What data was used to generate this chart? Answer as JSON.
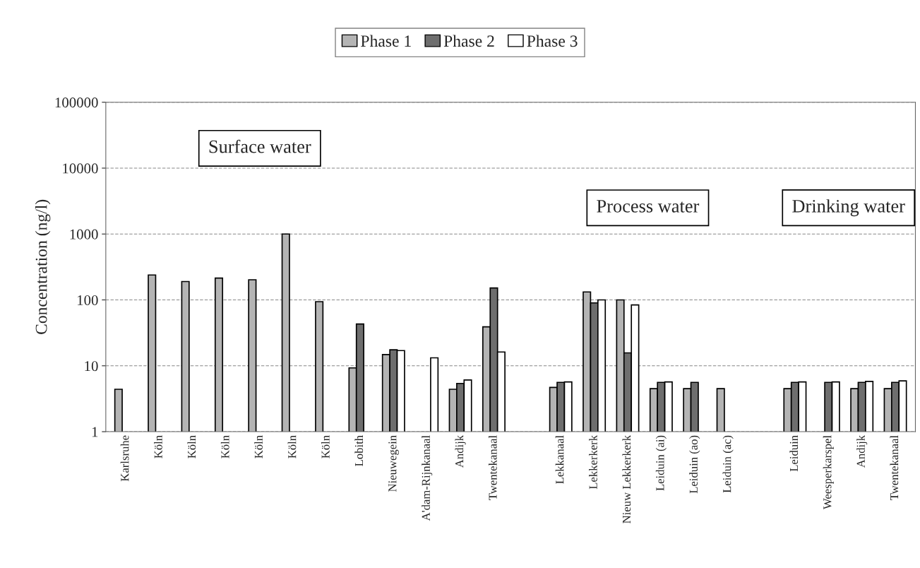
{
  "chart_data": {
    "type": "bar",
    "ylabel": "Concentration (ng/l)",
    "categories": [
      "Karlsruhe",
      "Köln",
      "Köln",
      "Köln",
      "Köln",
      "Köln",
      "Köln",
      "Lobith",
      "Nieuwegein",
      "A'dam-Rijnkanaal",
      "Andijk",
      "Twentekanaal",
      null,
      "Lekkanaal",
      "Lekkerkerk",
      "Nieuw Lekkerkerk",
      "Leiduin (ai)",
      "Leiduin (ao)",
      "Leiduin (ac)",
      null,
      "Leiduin",
      "Weesperkarspel",
      "Andijk",
      "Twentekanaal"
    ],
    "series": [
      {
        "name": "Phase 1",
        "color": "#b4b4b4",
        "values": [
          4.4,
          239,
          190,
          214,
          202,
          1000,
          94,
          9.3,
          14.8,
          null,
          4.4,
          39,
          null,
          4.7,
          132,
          100,
          4.5,
          4.5,
          4.5,
          null,
          4.5,
          null,
          4.5,
          4.5
        ]
      },
      {
        "name": "Phase 2",
        "color": "#6e6e6e",
        "values": [
          null,
          null,
          null,
          null,
          null,
          null,
          null,
          43,
          17.5,
          null,
          5.4,
          152,
          null,
          5.6,
          90,
          15.7,
          5.6,
          5.6,
          null,
          null,
          5.6,
          5.6,
          5.6,
          5.6
        ]
      },
      {
        "name": "Phase 3",
        "color": "#ffffff",
        "values": [
          null,
          null,
          null,
          null,
          null,
          null,
          null,
          null,
          17,
          13.2,
          6.1,
          16.2,
          null,
          5.7,
          100,
          84,
          5.7,
          null,
          null,
          null,
          5.7,
          5.7,
          5.8,
          5.9
        ]
      }
    ],
    "log": true,
    "ylim": [
      1,
      100000
    ],
    "yticks": [
      1,
      10,
      100,
      1000,
      10000,
      100000
    ],
    "grid": "y",
    "legend": "top",
    "annotations": [
      "Surface water",
      "Process water",
      "Drinking water"
    ]
  }
}
